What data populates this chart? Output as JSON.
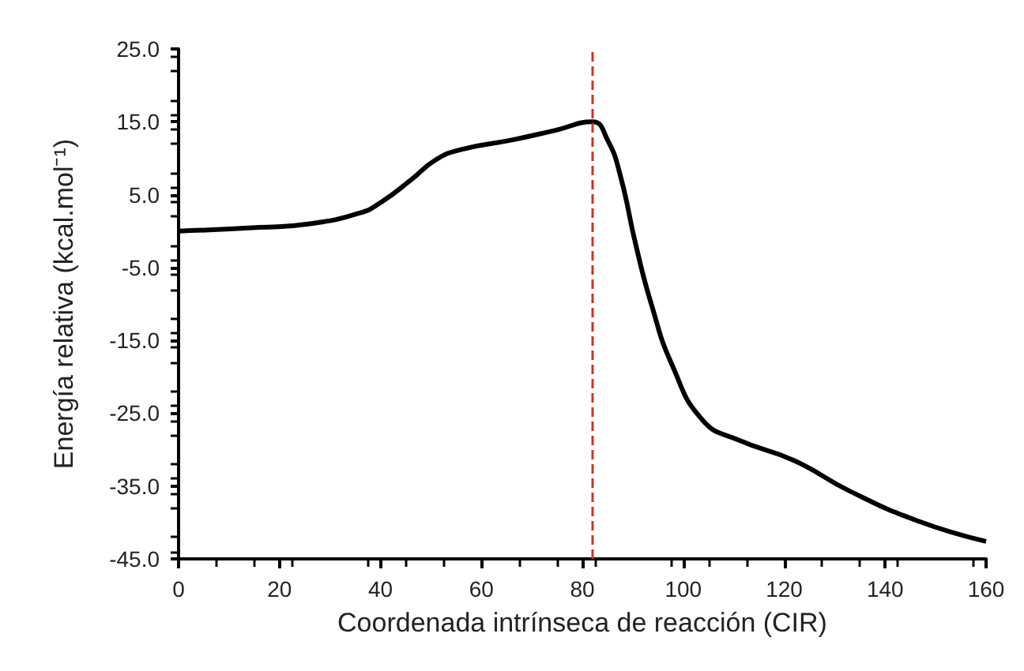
{
  "chart_data": {
    "type": "line",
    "xlabel": "Coordenada intrínseca de reacción (CIR)",
    "ylabel": "Energía relativa (kcal.mol⁻¹)",
    "x": [
      0,
      16,
      26,
      36,
      40,
      46,
      51,
      56,
      66,
      74.5,
      82,
      85,
      87.5,
      90.6,
      93.7,
      97.8,
      103.9,
      111,
      122,
      133,
      146.5,
      160
    ],
    "series": [
      {
        "color": "#000000",
        "values": [
          0,
          0.5,
          1.0,
          2.5,
          3.9,
          7.0,
          9.8,
          11.2,
          12.5,
          13.8,
          15.0,
          12.5,
          7.7,
          -1.9,
          -10.1,
          -18.4,
          -26.0,
          -28.7,
          -31.5,
          -35.7,
          -39.8,
          -42.6
        ]
      }
    ],
    "xlim": [
      0,
      160
    ],
    "xticks": [
      0,
      20,
      40,
      60,
      80,
      100,
      120,
      140,
      160
    ],
    "ylim": [
      -45,
      25
    ],
    "yticks": [
      {
        "value": -45,
        "label": "-45.0"
      },
      {
        "value": -35,
        "label": "-35.0"
      },
      {
        "value": -25,
        "label": "-25.0"
      },
      {
        "value": -15,
        "label": "-15.0"
      },
      {
        "value": -5,
        "label": "-5.0"
      },
      {
        "value": 5,
        "label": "5.0"
      },
      {
        "value": 15,
        "label": "15.0"
      },
      {
        "value": 25,
        "label": "25.0"
      }
    ],
    "ref_lines": [
      {
        "axis": "x",
        "value": 82,
        "color": "#c0392b",
        "line_style": "dashed"
      }
    ],
    "grid": false,
    "marker": "none",
    "line_style": "solid"
  }
}
